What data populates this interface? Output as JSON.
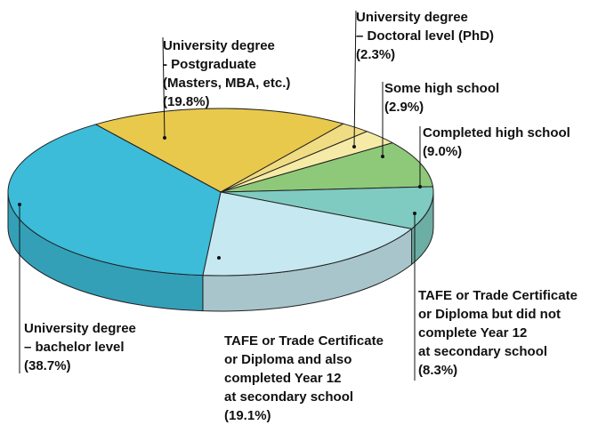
{
  "chart_data": {
    "type": "pie",
    "categories": [
      "University degree\n- Postgraduate\n(Masters, MBA, etc.)",
      "University degree\n– Doctoral level (PhD)",
      "Some high school",
      "Completed high school",
      "TAFE or Trade Certificate\nor Diploma but did not\ncomplete Year 12\nat secondary school",
      "TAFE or Trade Certificate\nor Diploma and also\ncompleted Year 12\nat secondary school",
      "University degree\n– bachelor level"
    ],
    "values": [
      19.8,
      2.3,
      2.9,
      9.0,
      8.3,
      19.1,
      38.7
    ],
    "value_labels": [
      "(19.8%)",
      "(2.3%)",
      "(2.9%)",
      "(9.0%)",
      "(8.3%)",
      "(19.1%)",
      "(38.7%)"
    ],
    "colors": [
      "#e8c94c",
      "#f0dc82",
      "#f6eba6",
      "#8ec97a",
      "#7fcbc1",
      "#c6e8f0",
      "#3cbcd9"
    ]
  }
}
